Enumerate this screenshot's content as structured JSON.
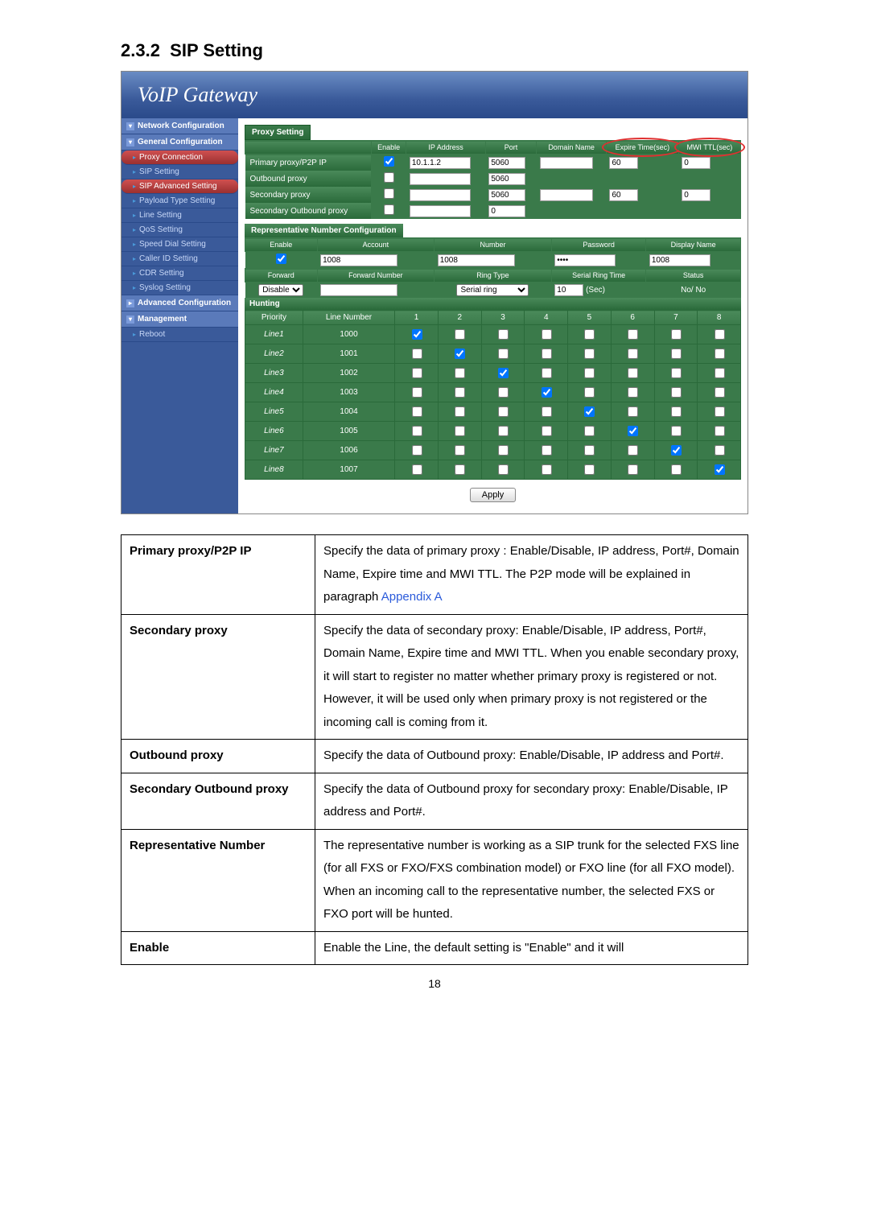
{
  "section_number": "2.3.2",
  "section_title": "SIP Setting",
  "gateway_title": "VoIP  Gateway",
  "nav": {
    "headers": [
      "Network Configuration",
      "General Configuration",
      "Advanced Configuration",
      "Management"
    ],
    "items": [
      "Proxy Connection",
      "SIP Setting",
      "SIP Advanced Setting",
      "Payload Type Setting",
      "Line Setting",
      "QoS Setting",
      "Speed Dial Setting",
      "Caller ID Setting",
      "CDR Setting",
      "Syslog Setting"
    ],
    "reboot": "Reboot"
  },
  "proxy": {
    "panel": "Proxy Setting",
    "headers": [
      "Enable",
      "IP Address",
      "Port",
      "Domain Name",
      "Expire Time(sec)",
      "MWI TTL(sec)"
    ],
    "rows": [
      {
        "label": "Primary proxy/P2P IP",
        "enable": true,
        "ip": "10.1.1.2",
        "port": "5060",
        "domain": "",
        "expire": "60",
        "mwi": "0"
      },
      {
        "label": "Outbound proxy",
        "enable": false,
        "ip": "",
        "port": "5060",
        "domain": "",
        "expire": "",
        "mwi": ""
      },
      {
        "label": "Secondary proxy",
        "enable": false,
        "ip": "",
        "port": "5060",
        "domain": "",
        "expire": "60",
        "mwi": "0"
      },
      {
        "label": "Secondary Outbound proxy",
        "enable": false,
        "ip": "",
        "port": "0",
        "domain": "",
        "expire": "",
        "mwi": ""
      }
    ]
  },
  "rep": {
    "title": "Representative Number Configuration",
    "h1": [
      "Enable",
      "Account",
      "Number",
      "Password",
      "Display Name"
    ],
    "v1": {
      "enable": true,
      "account": "1008",
      "number": "1008",
      "password": "••••",
      "display": "1008"
    },
    "h2": [
      "Forward",
      "Forward Number",
      "Ring Type",
      "Serial Ring Time",
      "Status"
    ],
    "v2": {
      "forward": "Disable",
      "fwdnum": "",
      "ringtype": "Serial ring",
      "serialtime": "10",
      "serialunit": "(Sec)",
      "status": "No/ No"
    }
  },
  "hunt": {
    "title": "Hunting",
    "cols": [
      "Priority",
      "Line Number",
      "1",
      "2",
      "3",
      "4",
      "5",
      "6",
      "7",
      "8"
    ],
    "rows": [
      {
        "line": "Line1",
        "num": "1000",
        "checks": [
          true,
          false,
          false,
          false,
          false,
          false,
          false,
          false
        ]
      },
      {
        "line": "Line2",
        "num": "1001",
        "checks": [
          false,
          true,
          false,
          false,
          false,
          false,
          false,
          false
        ]
      },
      {
        "line": "Line3",
        "num": "1002",
        "checks": [
          false,
          false,
          true,
          false,
          false,
          false,
          false,
          false
        ]
      },
      {
        "line": "Line4",
        "num": "1003",
        "checks": [
          false,
          false,
          false,
          true,
          false,
          false,
          false,
          false
        ]
      },
      {
        "line": "Line5",
        "num": "1004",
        "checks": [
          false,
          false,
          false,
          false,
          true,
          false,
          false,
          false
        ]
      },
      {
        "line": "Line6",
        "num": "1005",
        "checks": [
          false,
          false,
          false,
          false,
          false,
          true,
          false,
          false
        ]
      },
      {
        "line": "Line7",
        "num": "1006",
        "checks": [
          false,
          false,
          false,
          false,
          false,
          false,
          true,
          false
        ]
      },
      {
        "line": "Line8",
        "num": "1007",
        "checks": [
          false,
          false,
          false,
          false,
          false,
          false,
          false,
          true
        ]
      }
    ]
  },
  "apply": "Apply",
  "params": [
    {
      "name": "Primary proxy/P2P IP",
      "desc": "Specify the data of primary proxy : Enable/Disable, IP address, Port#, Domain Name, Expire time and MWI TTL. The P2P mode will be explained in paragraph ",
      "link": "Appendix A"
    },
    {
      "name": "Secondary proxy",
      "desc": "Specify the data of secondary proxy: Enable/Disable, IP address, Port#, Domain Name, Expire time and MWI TTL. When you enable secondary proxy, it will start to register no matter whether primary proxy is registered or not. However, it will be used only when primary proxy is not registered or the incoming call is coming from it."
    },
    {
      "name": "Outbound proxy",
      "desc": "Specify the data of Outbound proxy: Enable/Disable, IP address and Port#."
    },
    {
      "name": "Secondary Outbound proxy",
      "desc": "Specify the data of Outbound proxy for secondary proxy: Enable/Disable, IP address and Port#."
    },
    {
      "name": "Representative Number",
      "desc": "The representative number is working as a SIP trunk for the selected FXS line (for all FXS or FXO/FXS combination model) or FXO line (for all FXO model). When an incoming call to the representative number, the selected FXS or FXO port will be hunted."
    },
    {
      "name": "Enable",
      "desc": "Enable the Line, the default setting is \"Enable\" and it will"
    }
  ],
  "pagenum": "18"
}
